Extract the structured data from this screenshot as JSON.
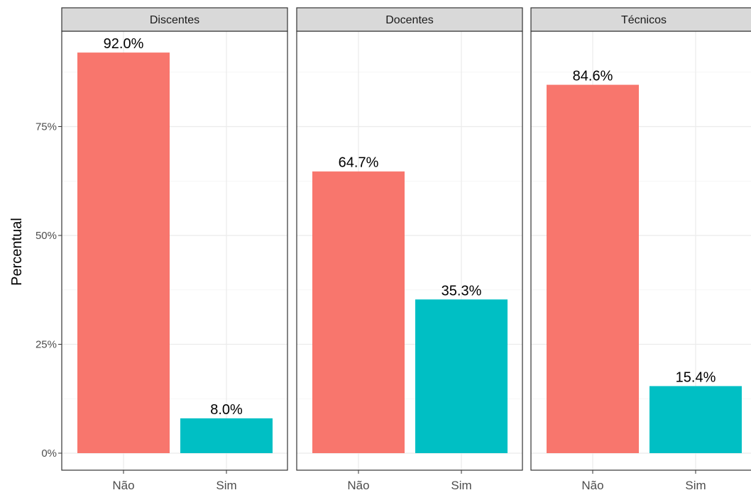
{
  "chart_data": {
    "type": "bar",
    "ylabel": "Percentual",
    "xlabel": "",
    "ylim": [
      0,
      100
    ],
    "y_ticks": [
      "0%",
      "25%",
      "50%",
      "75%"
    ],
    "y_tick_values": [
      0,
      25,
      50,
      75
    ],
    "categories": [
      "Não",
      "Sim"
    ],
    "colors": {
      "Não": "#F8766D",
      "Sim": "#00BFC4"
    },
    "grid": true,
    "facets": [
      {
        "name": "Discentes",
        "values": [
          92.0,
          8.0
        ],
        "labels": [
          "92.0%",
          "8.0%"
        ]
      },
      {
        "name": "Docentes",
        "values": [
          64.7,
          35.3
        ],
        "labels": [
          "64.7%",
          "35.3%"
        ]
      },
      {
        "name": "Técnicos",
        "values": [
          84.6,
          15.4
        ],
        "labels": [
          "84.6%",
          "15.4%"
        ]
      }
    ]
  }
}
